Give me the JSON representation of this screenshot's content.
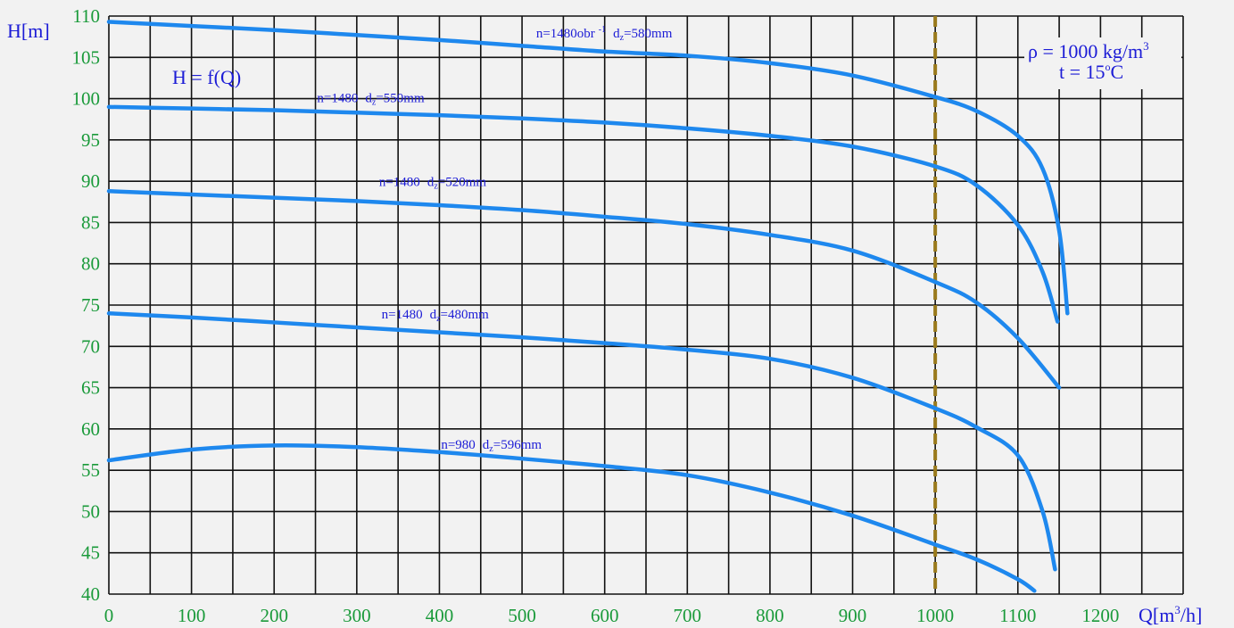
{
  "chart_data": {
    "type": "line",
    "title": "",
    "xlabel": "Q[m3/h]",
    "ylabel": "H[m]",
    "xlim": [
      0,
      1300
    ],
    "ylim": [
      40,
      110
    ],
    "x_ticks": [
      0,
      100,
      200,
      300,
      400,
      500,
      600,
      700,
      800,
      900,
      1000,
      1100,
      1200
    ],
    "y_ticks": [
      40,
      45,
      50,
      55,
      60,
      65,
      70,
      75,
      80,
      85,
      90,
      95,
      100,
      105,
      110
    ],
    "grid": true,
    "x_grid_step": 50,
    "y_grid_step": 5,
    "reference_line": {
      "x": 1000,
      "style": "dashed",
      "color": "#9a7a1c"
    },
    "annotations": {
      "function": "H = f(Q)",
      "density": "ρ = 1000 kg/m",
      "density_sup": "3",
      "temperature": "t = 15",
      "temperature_sup": "o",
      "temperature_unit": "C"
    },
    "series": [
      {
        "label": "n=1480obr",
        "label_sup": "-1",
        "label_d": "d",
        "label_sub": "z",
        "label_rest": "=580mm",
        "points": [
          [
            0,
            109.3
          ],
          [
            100,
            108.8
          ],
          [
            200,
            108.3
          ],
          [
            300,
            107.7
          ],
          [
            400,
            107.1
          ],
          [
            500,
            106.4
          ],
          [
            600,
            105.7
          ],
          [
            700,
            105.2
          ],
          [
            800,
            104.3
          ],
          [
            900,
            102.8
          ],
          [
            1000,
            100.2
          ],
          [
            1050,
            98.5
          ],
          [
            1100,
            95.5
          ],
          [
            1130,
            91.5
          ],
          [
            1150,
            84
          ],
          [
            1160,
            74
          ]
        ]
      },
      {
        "label": "n=1480",
        "label_sup": "",
        "label_d": "d",
        "label_sub": "z",
        "label_rest": "=550mm",
        "points": [
          [
            0,
            99
          ],
          [
            100,
            98.8
          ],
          [
            200,
            98.6
          ],
          [
            300,
            98.3
          ],
          [
            400,
            98
          ],
          [
            500,
            97.6
          ],
          [
            600,
            97.1
          ],
          [
            700,
            96.4
          ],
          [
            800,
            95.5
          ],
          [
            900,
            94.2
          ],
          [
            1000,
            91.8
          ],
          [
            1050,
            89.5
          ],
          [
            1100,
            84.7
          ],
          [
            1130,
            79
          ],
          [
            1148,
            73
          ]
        ]
      },
      {
        "label": "n=1480",
        "label_sup": "",
        "label_d": "d",
        "label_sub": "z",
        "label_rest": "=520mm",
        "points": [
          [
            0,
            88.8
          ],
          [
            100,
            88.4
          ],
          [
            200,
            88
          ],
          [
            300,
            87.6
          ],
          [
            400,
            87.1
          ],
          [
            500,
            86.5
          ],
          [
            600,
            85.7
          ],
          [
            700,
            84.8
          ],
          [
            800,
            83.5
          ],
          [
            900,
            81.6
          ],
          [
            1000,
            77.8
          ],
          [
            1050,
            75.3
          ],
          [
            1100,
            71
          ],
          [
            1150,
            65
          ]
        ]
      },
      {
        "label": "n=1480",
        "label_sup": "",
        "label_d": "d",
        "label_sub": "z",
        "label_rest": "=480mm",
        "points": [
          [
            0,
            74
          ],
          [
            100,
            73.5
          ],
          [
            200,
            72.9
          ],
          [
            300,
            72.3
          ],
          [
            400,
            71.7
          ],
          [
            500,
            71.1
          ],
          [
            600,
            70.4
          ],
          [
            700,
            69.6
          ],
          [
            800,
            68.5
          ],
          [
            900,
            66.2
          ],
          [
            1000,
            62.5
          ],
          [
            1050,
            60.2
          ],
          [
            1100,
            56.8
          ],
          [
            1130,
            50
          ],
          [
            1145,
            43
          ]
        ]
      },
      {
        "label": "n=980",
        "label_sup": "",
        "label_d": "d",
        "label_sub": "z",
        "label_rest": "=596mm",
        "points": [
          [
            0,
            56.2
          ],
          [
            100,
            57.5
          ],
          [
            200,
            58
          ],
          [
            300,
            57.8
          ],
          [
            400,
            57.2
          ],
          [
            500,
            56.4
          ],
          [
            600,
            55.5
          ],
          [
            700,
            54.4
          ],
          [
            800,
            52.3
          ],
          [
            900,
            49.5
          ],
          [
            1000,
            46
          ],
          [
            1050,
            44.2
          ],
          [
            1100,
            41.8
          ],
          [
            1120,
            40.4
          ]
        ]
      }
    ]
  }
}
